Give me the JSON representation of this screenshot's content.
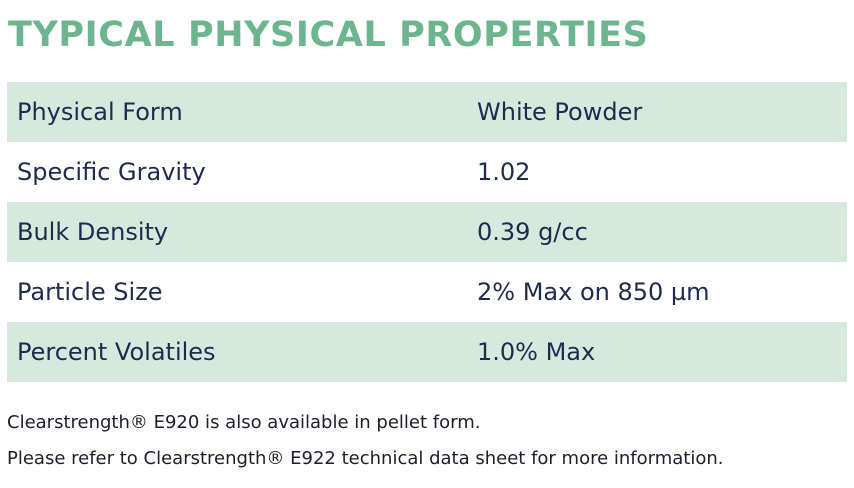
{
  "title": "TYPICAL PHYSICAL PROPERTIES",
  "properties": [
    {
      "name": "Physical Form",
      "value": "White Powder"
    },
    {
      "name": "Specific Gravity",
      "value": "1.02"
    },
    {
      "name": "Bulk Density",
      "value": "0.39 g/cc"
    },
    {
      "name": "Particle Size",
      "value": "2% Max on 850 µm"
    },
    {
      "name": "Percent Volatiles",
      "value": "1.0% Max"
    }
  ],
  "notes": [
    "Clearstrength® E920 is also available in pellet form.",
    "Please refer to Clearstrength® E922 technical data sheet for more information."
  ],
  "colors": {
    "title": "#6db58f",
    "row_shade": "#d7e8dd",
    "table_text": "#1f2a4d"
  }
}
